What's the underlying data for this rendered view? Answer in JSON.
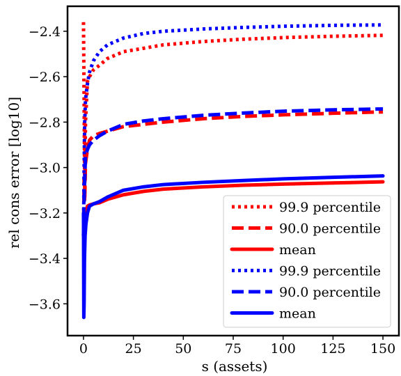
{
  "chart_data": {
    "type": "line",
    "title": "",
    "xlabel": "s (assets)",
    "ylabel": "rel cons error [log10]",
    "xlim": [
      -8,
      158
    ],
    "ylim": [
      -3.74,
      -2.29
    ],
    "xticks": [
      0,
      25,
      50,
      75,
      100,
      125,
      150
    ],
    "yticks": [
      -3.6,
      -3.4,
      -3.2,
      -3.0,
      -2.8,
      -2.6,
      -2.4
    ],
    "xtick_labels": [
      "0",
      "25",
      "50",
      "75",
      "100",
      "125",
      "150"
    ],
    "ytick_labels": [
      "−3.6",
      "−3.4",
      "−3.2",
      "−3.0",
      "−2.8",
      "−2.6",
      "−2.4"
    ],
    "grid": false,
    "legend_position": "bottom-right",
    "series": [
      {
        "name": "99.9 percentile",
        "color": "#ff0000",
        "style": "dotted",
        "x": [
          0,
          0.3,
          0.6,
          1,
          2,
          3,
          5,
          8,
          12,
          20,
          30,
          40,
          60,
          80,
          100,
          125,
          150
        ],
        "y": [
          -2.36,
          -2.7,
          -3.1,
          -2.8,
          -2.62,
          -2.6,
          -2.57,
          -2.55,
          -2.52,
          -2.49,
          -2.475,
          -2.46,
          -2.445,
          -2.435,
          -2.428,
          -2.422,
          -2.418
        ]
      },
      {
        "name": "90.0 percentile",
        "color": "#ff0000",
        "style": "dashed",
        "x": [
          0,
          0.3,
          0.6,
          1,
          2,
          3,
          5,
          8,
          12,
          20,
          30,
          40,
          60,
          80,
          100,
          125,
          150
        ],
        "y": [
          -3.3,
          -3.05,
          -3.15,
          -2.98,
          -2.92,
          -2.88,
          -2.86,
          -2.85,
          -2.84,
          -2.82,
          -2.81,
          -2.8,
          -2.785,
          -2.775,
          -2.768,
          -2.761,
          -2.755
        ]
      },
      {
        "name": "mean",
        "color": "#ff0000",
        "style": "solid",
        "x": [
          0,
          0.3,
          0.6,
          1,
          2,
          3,
          5,
          8,
          12,
          20,
          30,
          40,
          60,
          80,
          100,
          125,
          150
        ],
        "y": [
          -3.3,
          -3.22,
          -3.25,
          -3.2,
          -3.17,
          -3.165,
          -3.16,
          -3.155,
          -3.14,
          -3.12,
          -3.105,
          -3.095,
          -3.085,
          -3.078,
          -3.073,
          -3.068,
          -3.063
        ]
      },
      {
        "name": "99.9 percentile",
        "color": "#0000ff",
        "style": "dotted",
        "x": [
          0,
          0.3,
          0.6,
          1,
          2,
          3,
          5,
          8,
          12,
          20,
          30,
          40,
          60,
          80,
          100,
          125,
          150
        ],
        "y": [
          -3.3,
          -3.0,
          -2.8,
          -2.7,
          -2.63,
          -2.58,
          -2.53,
          -2.49,
          -2.46,
          -2.43,
          -2.41,
          -2.4,
          -2.39,
          -2.383,
          -2.378,
          -2.374,
          -2.372
        ]
      },
      {
        "name": "90.0 percentile",
        "color": "#0000ff",
        "style": "dashed",
        "x": [
          0,
          0.3,
          0.6,
          1,
          2,
          3,
          5,
          8,
          12,
          20,
          30,
          40,
          60,
          80,
          100,
          125,
          150
        ],
        "y": [
          -3.3,
          -3.15,
          -3.05,
          -2.95,
          -2.92,
          -2.9,
          -2.88,
          -2.86,
          -2.84,
          -2.81,
          -2.795,
          -2.785,
          -2.77,
          -2.76,
          -2.752,
          -2.746,
          -2.742
        ]
      },
      {
        "name": "mean",
        "color": "#0000ff",
        "style": "solid",
        "x": [
          0,
          0.15,
          0.3,
          0.5,
          0.8,
          1.2,
          2,
          3,
          5,
          8,
          12,
          20,
          30,
          40,
          60,
          80,
          100,
          125,
          150
        ],
        "y": [
          -3.2,
          -3.66,
          -3.6,
          -3.4,
          -3.3,
          -3.25,
          -3.2,
          -3.17,
          -3.16,
          -3.15,
          -3.13,
          -3.1,
          -3.085,
          -3.075,
          -3.065,
          -3.057,
          -3.05,
          -3.043,
          -3.037
        ]
      }
    ]
  }
}
